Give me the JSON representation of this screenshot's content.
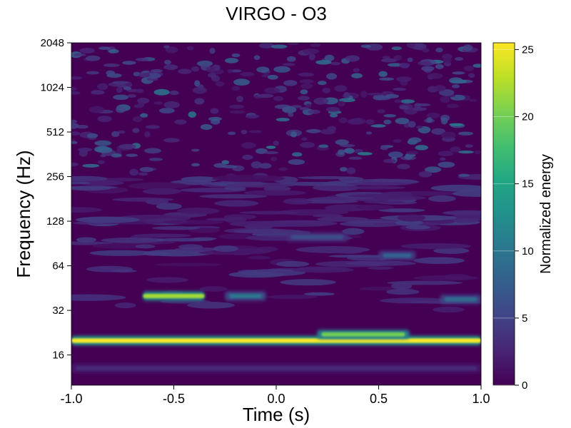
{
  "chart_data": {
    "type": "heatmap",
    "title": "VIRGO - O3",
    "xlabel": "Time (s)",
    "ylabel": "Frequency (Hz)",
    "xlim": [
      -1.0,
      1.0
    ],
    "ylim": [
      10,
      2048
    ],
    "yscale": "log2",
    "x_ticks": [
      -1.0,
      -0.5,
      0.0,
      0.5,
      1.0
    ],
    "x_tick_labels": [
      "-1.0",
      "-0.5",
      "0.0",
      "0.5",
      "1.0"
    ],
    "y_ticks": [
      16,
      32,
      64,
      128,
      256,
      512,
      1024,
      2048
    ],
    "y_tick_labels": [
      "16",
      "32",
      "64",
      "128",
      "256",
      "512",
      "1024",
      "2048"
    ],
    "colormap": "viridis",
    "colorbar": {
      "label": "Normalized energy",
      "range": [
        0,
        25.5
      ],
      "ticks": [
        0,
        5,
        10,
        15,
        20,
        25
      ],
      "tick_labels": [
        "0",
        "5",
        "10",
        "15",
        "20",
        "25"
      ]
    },
    "features": [
      {
        "freq_hz": 20,
        "t_start": -1.0,
        "t_end": 1.0,
        "peak_energy": 25.5
      },
      {
        "freq_hz": 22,
        "t_start": 0.2,
        "t_end": 0.65,
        "peak_energy": 20
      },
      {
        "freq_hz": 40,
        "t_start": -0.65,
        "t_end": -0.35,
        "peak_energy": 22
      },
      {
        "freq_hz": 40,
        "t_start": -0.25,
        "t_end": -0.05,
        "peak_energy": 10
      },
      {
        "freq_hz": 38,
        "t_start": 0.8,
        "t_end": 1.0,
        "peak_energy": 9
      },
      {
        "freq_hz": 75,
        "t_start": 0.5,
        "t_end": 0.68,
        "peak_energy": 8
      },
      {
        "freq_hz": 100,
        "t_start": 0.05,
        "t_end": 0.35,
        "peak_energy": 6
      },
      {
        "freq_hz": 13,
        "t_start": -1.0,
        "t_end": 1.0,
        "peak_energy": 3
      }
    ]
  }
}
